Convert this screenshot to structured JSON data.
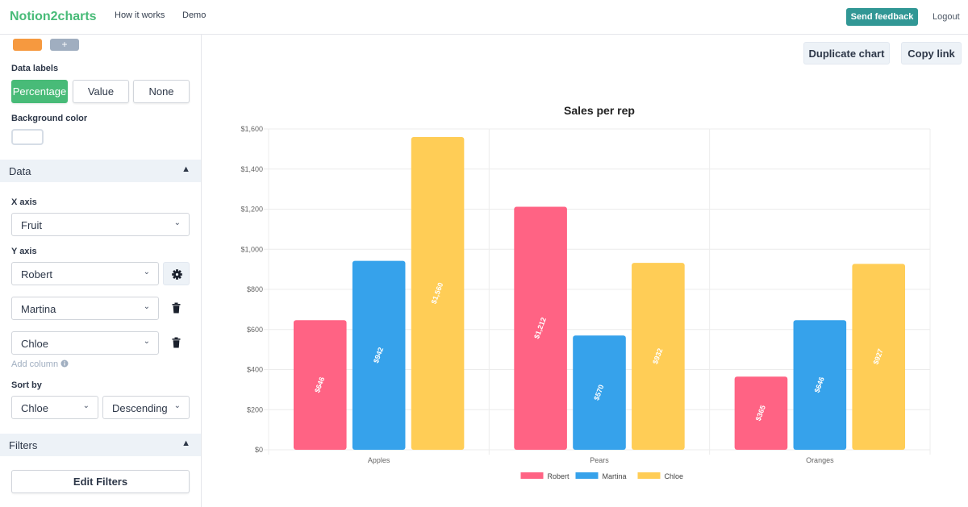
{
  "nav": {
    "brand": "Notion2charts",
    "links": [
      "How it works",
      "Demo"
    ],
    "feedback_label": "Send feedback",
    "logout_label": "Logout"
  },
  "sidebar": {
    "add_color_label": "+",
    "data_labels_title": "Data labels",
    "data_label_options": [
      "Percentage",
      "Value",
      "None"
    ],
    "data_label_selected": "Percentage",
    "background_color_title": "Background color",
    "data_section": "Data",
    "x_axis_title": "X axis",
    "x_axis_value": "Fruit",
    "y_axis_title": "Y axis",
    "y_axis_values": [
      "Robert",
      "Martina",
      "Chloe"
    ],
    "add_column_label": "Add column",
    "sort_by_title": "Sort by",
    "sort_by_value": "Chloe",
    "sort_order_value": "Descending",
    "filters_section": "Filters",
    "edit_filters_label": "Edit Filters"
  },
  "main": {
    "duplicate_label": "Duplicate chart",
    "copy_link_label": "Copy link"
  },
  "colors": {
    "brand": "#48bb78",
    "feedback": "#319795",
    "robert": "#ff6384",
    "martina": "#36a2eb",
    "chloe": "#ffcd56"
  },
  "chart_data": {
    "type": "bar",
    "title": "Sales per rep",
    "xlabel": "",
    "ylabel": "",
    "categories": [
      "Apples",
      "Pears",
      "Oranges"
    ],
    "series": [
      {
        "name": "Robert",
        "values": [
          646,
          1212,
          365
        ],
        "labels": [
          "$646",
          "$1,212",
          "$365"
        ]
      },
      {
        "name": "Martina",
        "values": [
          942,
          570,
          646
        ],
        "labels": [
          "$942",
          "$570",
          "$646"
        ]
      },
      {
        "name": "Chloe",
        "values": [
          1560,
          932,
          927
        ],
        "labels": [
          "$1,560",
          "$932",
          "$927"
        ]
      }
    ],
    "ylim": [
      0,
      1600
    ],
    "yticks": [
      0,
      200,
      400,
      600,
      800,
      1000,
      1200,
      1400,
      1600
    ],
    "ytick_labels": [
      "$0",
      "$200",
      "$400",
      "$600",
      "$800",
      "$1,000",
      "$1,200",
      "$1,400",
      "$1,600"
    ],
    "grid": true,
    "legend": "bottom"
  }
}
